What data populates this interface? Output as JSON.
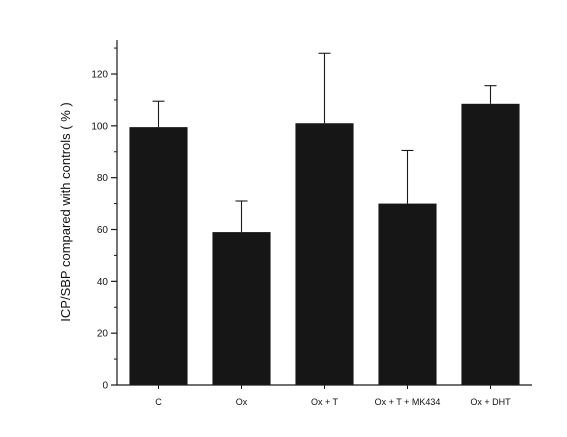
{
  "colors": {
    "bar": "#161616",
    "axis": "#1a1a1a",
    "background": "#ffffff"
  },
  "chart_data": {
    "type": "bar",
    "title": "",
    "xlabel": "",
    "ylabel": "ICP/SBP compared with controls ( % )",
    "categories": [
      "C",
      "Ox",
      "Ox + T",
      "Ox + T + MK434",
      "Ox + DHT"
    ],
    "values": [
      99.5,
      59,
      101,
      70,
      108.5
    ],
    "error_upper": [
      10,
      12,
      27,
      20.5,
      7
    ],
    "ylim": [
      0,
      135
    ],
    "yticks": [
      0,
      20,
      40,
      60,
      80,
      100,
      120
    ],
    "yminor_step": 10,
    "grid": false,
    "legend": "none"
  }
}
